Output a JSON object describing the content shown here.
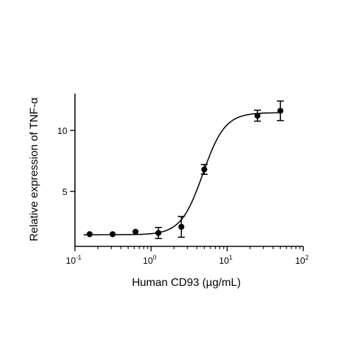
{
  "chart_data": {
    "type": "scatter",
    "title": "",
    "xlabel": "Human CD93 (µg/mL)",
    "ylabel": "Relative expression of TNF-α",
    "xscale": "log",
    "xlim": [
      0.1,
      100
    ],
    "ylim": [
      0.5,
      13
    ],
    "x_ticks": [
      {
        "value": 0.1,
        "base": "10",
        "exp": "-1"
      },
      {
        "value": 1,
        "base": "10",
        "exp": "0"
      },
      {
        "value": 10,
        "base": "10",
        "exp": "1"
      },
      {
        "value": 100,
        "base": "10",
        "exp": "2"
      }
    ],
    "y_ticks": [
      {
        "value": 5,
        "label": "5"
      },
      {
        "value": 10,
        "label": "10"
      }
    ],
    "grid": false,
    "legend": "none",
    "points": [
      {
        "x": 0.156,
        "y": 1.5,
        "err": 0.0
      },
      {
        "x": 0.3125,
        "y": 1.5,
        "err": 0.0
      },
      {
        "x": 0.625,
        "y": 1.7,
        "err": 0.0
      },
      {
        "x": 1.25,
        "y": 1.6,
        "err": 0.45
      },
      {
        "x": 2.5,
        "y": 2.1,
        "err": 0.85
      },
      {
        "x": 5,
        "y": 6.8,
        "err": 0.4
      },
      {
        "x": 25,
        "y": 11.2,
        "err": 0.45
      },
      {
        "x": 50,
        "y": 11.6,
        "err": 0.8
      }
    ],
    "fit": {
      "model": "4PL",
      "bottom": 1.45,
      "top": 11.45,
      "ec50": 4.8,
      "hill": 3.0
    },
    "colors": {
      "marks": "#000000",
      "background": "#ffffff"
    }
  }
}
